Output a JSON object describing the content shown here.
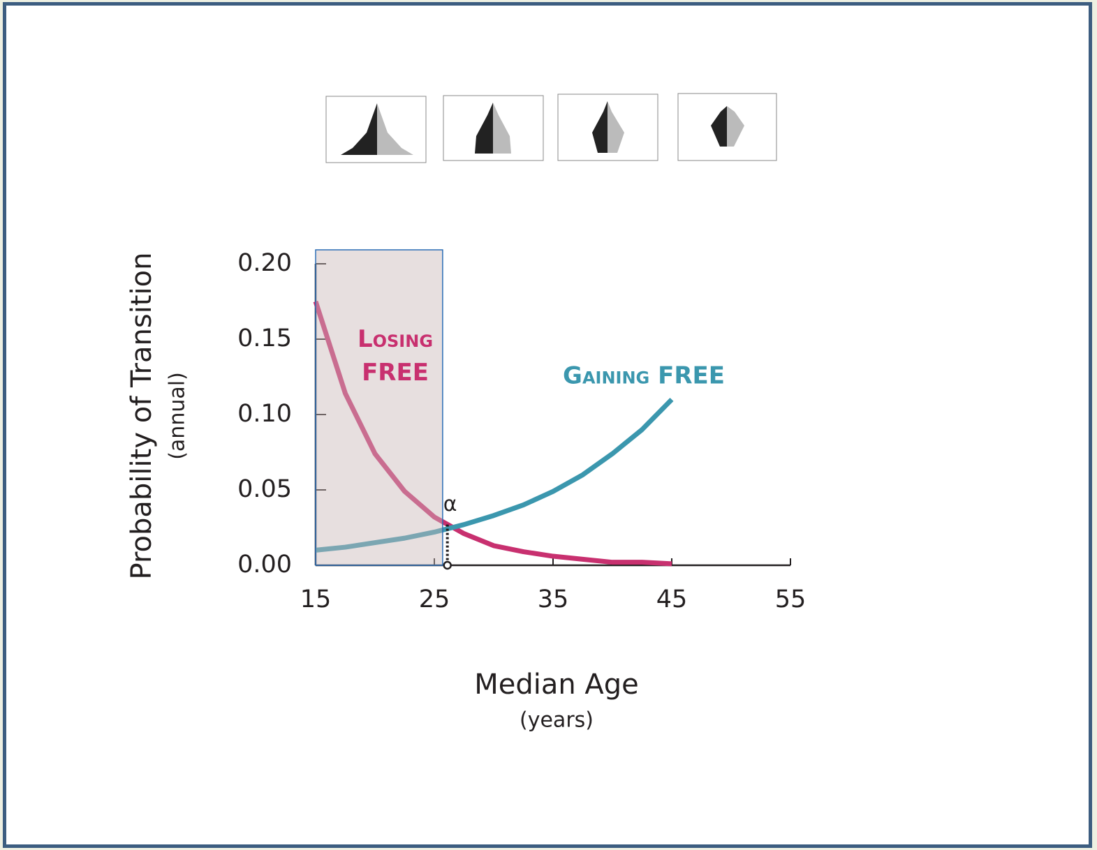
{
  "chart_data": {
    "type": "line",
    "x_label": "Median Age",
    "x_sublabel": "(years)",
    "y_label": "Probability of Transition",
    "y_sublabel": "(annual)",
    "x": [
      15,
      17.5,
      20,
      22.5,
      25,
      27.5,
      30,
      32.5,
      35,
      37.5,
      40,
      42.5,
      45
    ],
    "series": [
      {
        "name": "Losing FREE",
        "color": "#c8306f",
        "values": [
          0.175,
          0.114,
          0.074,
          0.049,
          0.032,
          0.021,
          0.013,
          0.009,
          0.006,
          0.004,
          0.002,
          0.002,
          0.001
        ]
      },
      {
        "name": "Gaining FREE",
        "color": "#3b97ae",
        "values": [
          0.01,
          0.012,
          0.015,
          0.018,
          0.022,
          0.027,
          0.033,
          0.04,
          0.049,
          0.06,
          0.074,
          0.09,
          0.11
        ]
      }
    ],
    "highlight_x": [
      15,
      25.7
    ],
    "annotation": {
      "text": "α",
      "x": 26.1,
      "y": 0.027
    },
    "xlim": [
      15,
      55
    ],
    "ylim": [
      0,
      0.2
    ],
    "xticks": [
      15,
      25,
      35,
      45,
      55
    ],
    "yticks": [
      {
        "value": 0,
        "label": "0.00"
      },
      0.05,
      {
        "value": 0.1,
        "label": "0.10"
      },
      0.15,
      {
        "value": 0.2,
        "label": "0.20"
      }
    ]
  }
}
